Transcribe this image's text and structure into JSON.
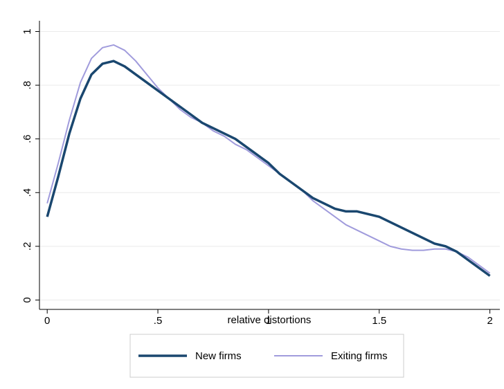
{
  "chart_data": {
    "type": "line",
    "x_label": "relative distortions",
    "x": [
      0,
      0.05,
      0.1,
      0.15,
      0.2,
      0.25,
      0.3,
      0.35,
      0.4,
      0.45,
      0.5,
      0.55,
      0.6,
      0.65,
      0.7,
      0.75,
      0.8,
      0.85,
      0.9,
      0.95,
      1,
      1.05,
      1.1,
      1.15,
      1.2,
      1.25,
      1.3,
      1.35,
      1.4,
      1.45,
      1.5,
      1.55,
      1.6,
      1.65,
      1.7,
      1.75,
      1.8,
      1.85,
      1.9,
      1.95,
      2
    ],
    "series": [
      {
        "name": "New firms",
        "color": "#1a476f",
        "values": [
          0.31,
          0.46,
          0.62,
          0.75,
          0.84,
          0.88,
          0.89,
          0.87,
          0.84,
          0.81,
          0.78,
          0.75,
          0.72,
          0.69,
          0.66,
          0.64,
          0.62,
          0.6,
          0.57,
          0.54,
          0.51,
          0.47,
          0.44,
          0.41,
          0.38,
          0.36,
          0.34,
          0.33,
          0.33,
          0.32,
          0.31,
          0.29,
          0.27,
          0.25,
          0.23,
          0.21,
          0.2,
          0.18,
          0.15,
          0.12,
          0.09
        ]
      },
      {
        "name": "Exiting firms",
        "color": "#a09bdc",
        "values": [
          0.36,
          0.51,
          0.67,
          0.81,
          0.9,
          0.94,
          0.95,
          0.93,
          0.89,
          0.84,
          0.79,
          0.75,
          0.71,
          0.68,
          0.66,
          0.63,
          0.61,
          0.58,
          0.56,
          0.53,
          0.5,
          0.47,
          0.44,
          0.41,
          0.37,
          0.34,
          0.31,
          0.28,
          0.26,
          0.24,
          0.22,
          0.2,
          0.19,
          0.185,
          0.185,
          0.19,
          0.19,
          0.18,
          0.16,
          0.13,
          0.1
        ]
      }
    ],
    "xlim": [
      -0.035,
      2.045
    ],
    "ylim": [
      -0.035,
      1.04
    ],
    "xticks": [
      0,
      {
        "value": 0.5,
        "label": ".5"
      },
      1,
      {
        "value": 1.5,
        "label": "1.5"
      },
      2
    ],
    "yticks": [
      0,
      {
        "value": 0.2,
        "label": ".2"
      },
      {
        "value": 0.4,
        "label": ".4"
      },
      {
        "value": 0.6,
        "label": ".6"
      },
      {
        "value": 0.8,
        "label": ".8"
      },
      1
    ],
    "grid": true,
    "legend": "bottom"
  }
}
